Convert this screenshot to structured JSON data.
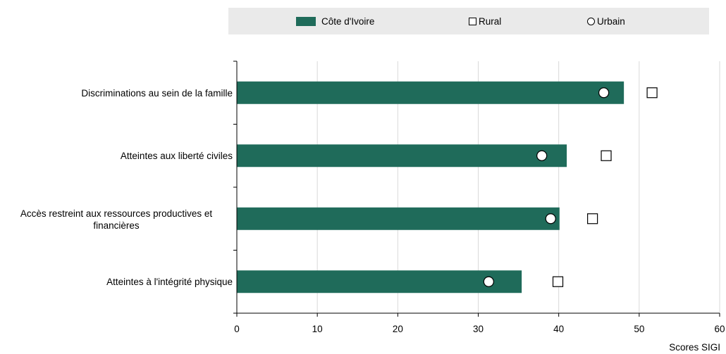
{
  "chart_data": {
    "type": "bar",
    "orientation": "horizontal",
    "categories": [
      "Discriminations au sein de la famille",
      "Atteintes aux liberté civiles",
      "Accès restreint aux ressources productives et financières",
      "Atteintes à l'intégrité physique"
    ],
    "series": [
      {
        "name": "Côte d'Ivoire",
        "kind": "bar",
        "color": "#1f6b5a",
        "values": [
          48.1,
          41.0,
          40.1,
          35.4
        ]
      },
      {
        "name": "Rural",
        "kind": "square-marker",
        "values": [
          51.6,
          45.9,
          44.2,
          39.9
        ]
      },
      {
        "name": "Urbain",
        "kind": "circle-marker",
        "values": [
          45.6,
          37.9,
          39.0,
          31.3
        ]
      }
    ],
    "xlabel": "Scores SIGI",
    "xlim": [
      0,
      60
    ],
    "xticks": [
      0,
      10,
      20,
      30,
      40,
      50,
      60
    ],
    "grid": true,
    "legend_placement": "top"
  }
}
